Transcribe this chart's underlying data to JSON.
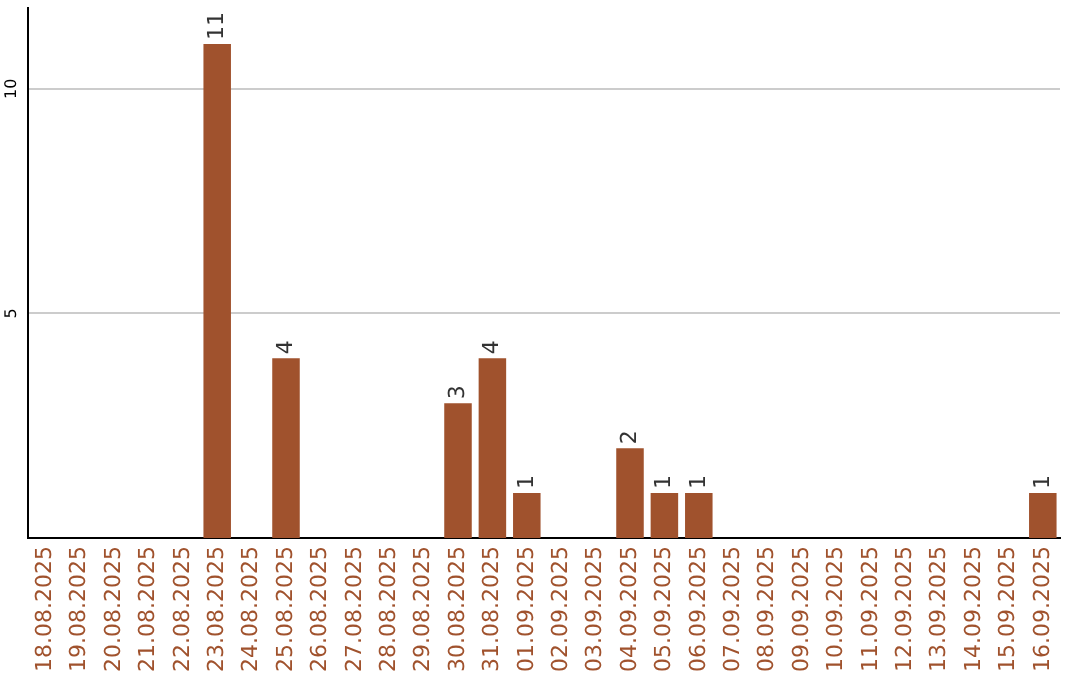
{
  "chart_data": {
    "type": "bar",
    "categories": [
      "18.08.2025",
      "19.08.2025",
      "20.08.2025",
      "21.08.2025",
      "22.08.2025",
      "23.08.2025",
      "24.08.2025",
      "25.08.2025",
      "26.08.2025",
      "27.08.2025",
      "28.08.2025",
      "29.08.2025",
      "30.08.2025",
      "31.08.2025",
      "01.09.2025",
      "02.09.2025",
      "03.09.2025",
      "04.09.2025",
      "05.09.2025",
      "06.09.2025",
      "07.09.2025",
      "08.09.2025",
      "09.09.2025",
      "10.09.2025",
      "11.09.2025",
      "12.09.2025",
      "13.09.2025",
      "14.09.2025",
      "15.09.2025",
      "16.09.2025"
    ],
    "values": [
      0,
      0,
      0,
      0,
      0,
      11,
      0,
      4,
      0,
      0,
      0,
      0,
      3,
      4,
      1,
      0,
      0,
      2,
      1,
      1,
      0,
      0,
      0,
      0,
      0,
      0,
      0,
      0,
      0,
      1
    ],
    "value_labels": [
      null,
      null,
      null,
      null,
      null,
      "11",
      null,
      "4",
      null,
      null,
      null,
      null,
      "3",
      "4",
      "1",
      null,
      null,
      "2",
      "1",
      "1",
      null,
      null,
      null,
      null,
      null,
      null,
      null,
      null,
      null,
      "1"
    ],
    "color": "#a0522d",
    "ylim": [
      0,
      11.8
    ],
    "yticks": [
      5,
      10
    ],
    "grid": "y",
    "legend": false
  }
}
